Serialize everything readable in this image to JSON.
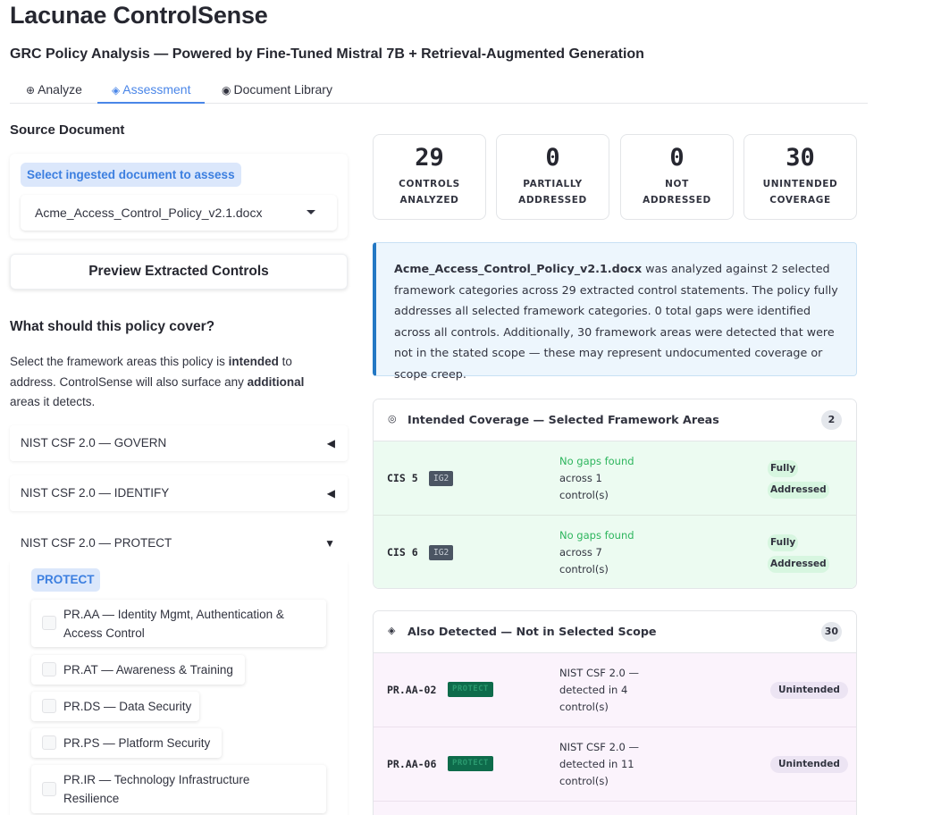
{
  "app": {
    "title": "Lacunae ControlSense",
    "subtitle": "GRC Policy Analysis — Powered by Fine-Tuned Mistral 7B + Retrieval-Augmented Generation"
  },
  "tabs": [
    {
      "icon": "⊕",
      "label": "Analyze"
    },
    {
      "icon": "◈",
      "label": "Assessment"
    },
    {
      "icon": "◉",
      "label": "Document Library"
    }
  ],
  "source": {
    "heading": "Source Document",
    "select_label": "Select ingested document to assess",
    "selected_value": "Acme_Access_Control_Policy_v2.1.docx",
    "preview_button": "Preview Extracted Controls"
  },
  "coverage": {
    "heading": "What should this policy cover?",
    "desc_1": "Select the framework areas this policy is ",
    "desc_intended": "intended",
    "desc_2": " to address. ControlSense will also surface any ",
    "desc_additional": "additional",
    "desc_3": " areas it detects.",
    "accordions": [
      {
        "label": "NIST CSF 2.0 — GOVERN",
        "icon": "◀"
      },
      {
        "label": "NIST CSF 2.0 — IDENTIFY",
        "icon": "◀"
      },
      {
        "label": "NIST CSF 2.0 — PROTECT",
        "icon": "▼"
      }
    ],
    "protect_pill": "PROTECT",
    "protect_items": [
      {
        "line1": "PR.AA — Identity Mgmt, Authentication &",
        "line2": "Access Control"
      },
      {
        "line1": "PR.AT — Awareness & Training",
        "line2": ""
      },
      {
        "line1": "PR.DS — Data Security",
        "line2": ""
      },
      {
        "line1": "PR.PS — Platform Security",
        "line2": ""
      },
      {
        "line1": "PR.IR — Technology Infrastructure",
        "line2": "Resilience"
      }
    ]
  },
  "metrics": [
    {
      "value": "29",
      "label1": "CONTROLS",
      "label2": "ANALYZED"
    },
    {
      "value": "0",
      "label1": "PARTIALLY",
      "label2": "ADDRESSED"
    },
    {
      "value": "0",
      "label1": "NOT",
      "label2": "ADDRESSED"
    },
    {
      "value": "30",
      "label1": "UNINTENDED",
      "label2": "COVERAGE"
    }
  ],
  "summary": {
    "doc": "Acme_Access_Control_Policy_v2.1.docx",
    "text": " was analyzed against 2 selected framework categories across 29 extracted control statements. The policy fully addresses all selected framework categories. 0 total gaps were identified across all controls. Additionally, 30 framework areas were detected that were not in the stated scope — these may represent undocumented coverage or scope creep."
  },
  "intended": {
    "icon": "◎",
    "title": "Intended Coverage — Selected Framework Areas",
    "count": "2",
    "rows": [
      {
        "id": "CIS 5",
        "tag": "IG2",
        "ok": "No gaps found",
        "l2": "across 1",
        "l3": "control(s)",
        "status1": "Fully",
        "status2": "Addressed"
      },
      {
        "id": "CIS 6",
        "tag": "IG2",
        "ok": "No gaps found",
        "l2": "across 7",
        "l3": "control(s)",
        "status1": "Fully",
        "status2": "Addressed"
      }
    ]
  },
  "detected": {
    "icon": "◈",
    "title": "Also Detected — Not in Selected Scope",
    "count": "30",
    "rows": [
      {
        "id": "PR.AA-02",
        "tag": "PROTECT",
        "l1": "NIST CSF 2.0 —",
        "l2": "detected in 4",
        "l3": "control(s)",
        "status": "Unintended"
      },
      {
        "id": "PR.AA-06",
        "tag": "PROTECT",
        "l1": "NIST CSF 2.0 —",
        "l2": "detected in 11",
        "l3": "control(s)",
        "status": "Unintended"
      }
    ]
  }
}
